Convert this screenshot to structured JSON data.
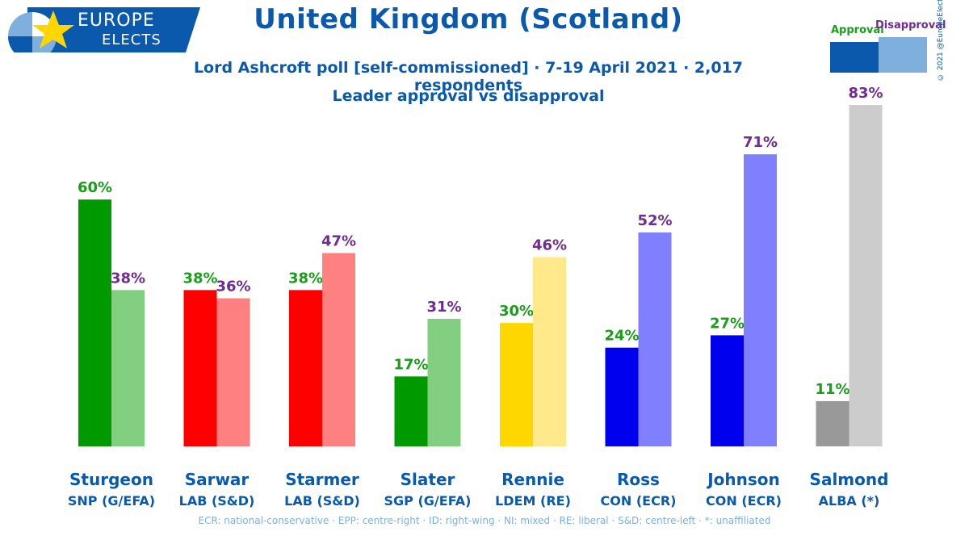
{
  "header": {
    "logo_line1": "EUROPE",
    "logo_line2": "ELECTS",
    "title": "United Kingdom (Scotland)",
    "subtitle": "Lord Ashcroft poll [self-commissioned] · 7-19 April 2021 · 2,017 respondents",
    "subtitle2": "Leader approval vs disapproval",
    "copyright": "© 2021 @EuropeElects"
  },
  "legend": {
    "approval": "Approval",
    "disapproval": "Disapproval",
    "approval_color": "#0a59ad",
    "disapproval_color": "#7fb0dd"
  },
  "footnote": "ECR: national-conservative · EPP: centre-right · ID: right-wing · NI: mixed · RE: liberal · S&D: centre-left · *: unaffiliated",
  "chart_data": {
    "type": "bar",
    "title": "Leader approval vs disapproval",
    "categories": [
      "Sturgeon",
      "Sarwar",
      "Starmer",
      "Slater",
      "Rennie",
      "Ross",
      "Johnson",
      "Salmond"
    ],
    "parties": [
      "SNP (G/EFA)",
      "LAB (S&D)",
      "LAB (S&D)",
      "SGP (G/EFA)",
      "LDEM (RE)",
      "CON (ECR)",
      "CON (ECR)",
      "ALBA (*)"
    ],
    "series": [
      {
        "name": "Approval",
        "values": [
          60,
          38,
          38,
          17,
          30,
          24,
          27,
          11
        ],
        "colors": [
          "#009a00",
          "#ff0000",
          "#ff0000",
          "#009a00",
          "#ffd700",
          "#0000ee",
          "#0000ee",
          "#999999"
        ]
      },
      {
        "name": "Disapproval",
        "values": [
          38,
          36,
          47,
          31,
          46,
          52,
          71,
          83
        ],
        "colors": [
          "#82cf82",
          "#ff8080",
          "#ff8080",
          "#82cf82",
          "#ffe98a",
          "#8080ff",
          "#8080ff",
          "#cccccc"
        ]
      }
    ],
    "value_suffix": "%",
    "ylim": [
      0,
      83
    ]
  }
}
